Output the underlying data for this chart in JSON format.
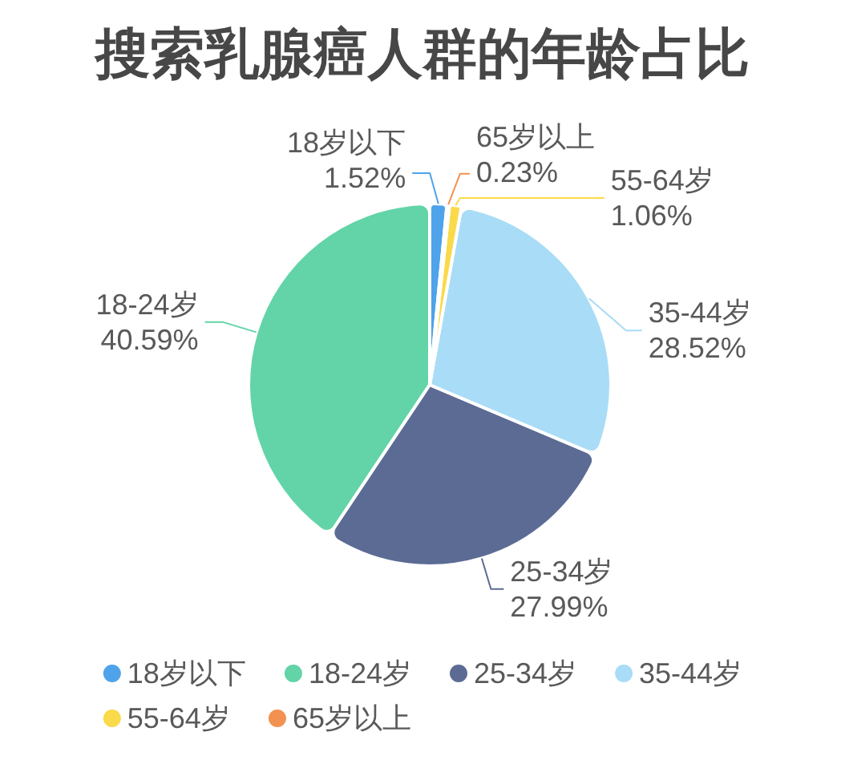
{
  "chart_data": {
    "type": "pie",
    "title": "搜索乳腺癌人群的年龄占比",
    "categories": [
      "18岁以下",
      "18-24岁",
      "25-34岁",
      "35-44岁",
      "55-64岁",
      "65岁以上"
    ],
    "values": [
      1.52,
      40.59,
      27.99,
      28.52,
      1.06,
      0.23
    ],
    "value_labels": [
      "1.52%",
      "40.59%",
      "27.99%",
      "28.52%",
      "1.06%",
      "0.23%"
    ],
    "colors": [
      "#4ea3ea",
      "#62d4a8",
      "#5b6b94",
      "#a9dcf6",
      "#fad94b",
      "#f39150"
    ],
    "legend": "bottom"
  }
}
